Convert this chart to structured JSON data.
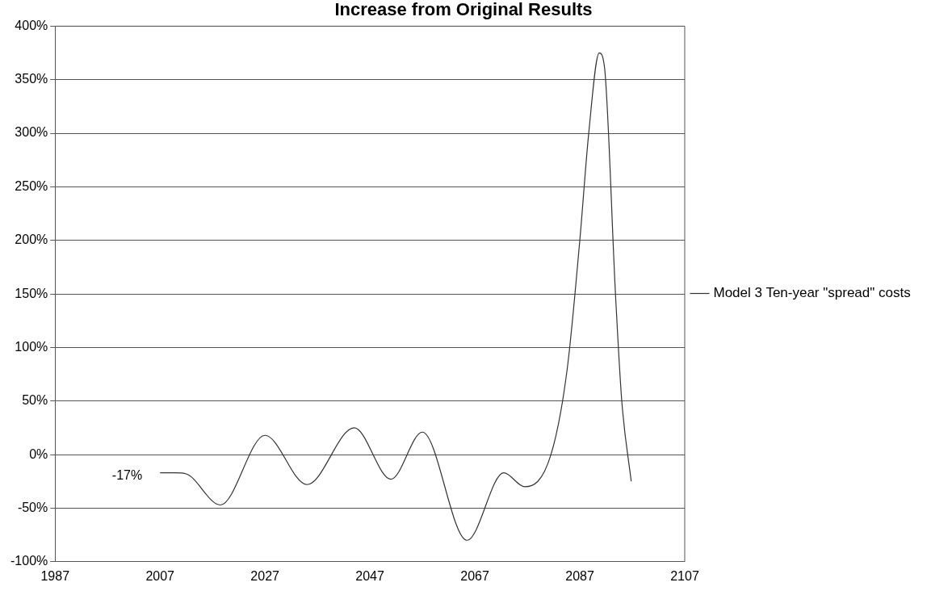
{
  "chart_data": {
    "type": "line",
    "title": "Increase from Original Results",
    "x": [
      2007,
      2010,
      2012,
      2018.5,
      2027,
      2035,
      2044,
      2051,
      2057,
      2065.5,
      2072.5,
      2076.5,
      2081.5,
      2084.6,
      2087,
      2088.7,
      2090.7,
      2091.7,
      2093.8,
      2095,
      2096.8
    ],
    "series": [
      {
        "name": "Model 3 Ten-year \"spread\" costs",
        "color": "#333333",
        "values": [
          -17,
          -17,
          -18,
          -47,
          18,
          -28,
          25,
          -23,
          21,
          -80,
          -17,
          -30,
          0,
          80,
          200,
          300,
          375,
          362,
          150,
          50,
          -25
        ]
      }
    ],
    "xlim": [
      1987,
      2107
    ],
    "xticks": [
      1987,
      2007,
      2027,
      2047,
      2067,
      2087,
      2107
    ],
    "ylim": [
      -100,
      400
    ],
    "yticks": [
      {
        "value": -100,
        "label": "-100%"
      },
      {
        "value": -50,
        "label": "-50%"
      },
      {
        "value": 0,
        "label": "0%"
      },
      {
        "value": 50,
        "label": "50%"
      },
      {
        "value": 100,
        "label": "100%"
      },
      {
        "value": 150,
        "label": "150%"
      },
      {
        "value": 200,
        "label": "200%"
      },
      {
        "value": 250,
        "label": "250%"
      },
      {
        "value": 300,
        "label": "300%"
      },
      {
        "value": 350,
        "label": "350%"
      },
      {
        "value": 400,
        "label": "400%"
      }
    ],
    "annotations": [
      {
        "text": "-17%",
        "x": 2007,
        "y": -17
      }
    ],
    "grid": "y",
    "legend": "right",
    "marker": "none",
    "line_style": "solid"
  }
}
